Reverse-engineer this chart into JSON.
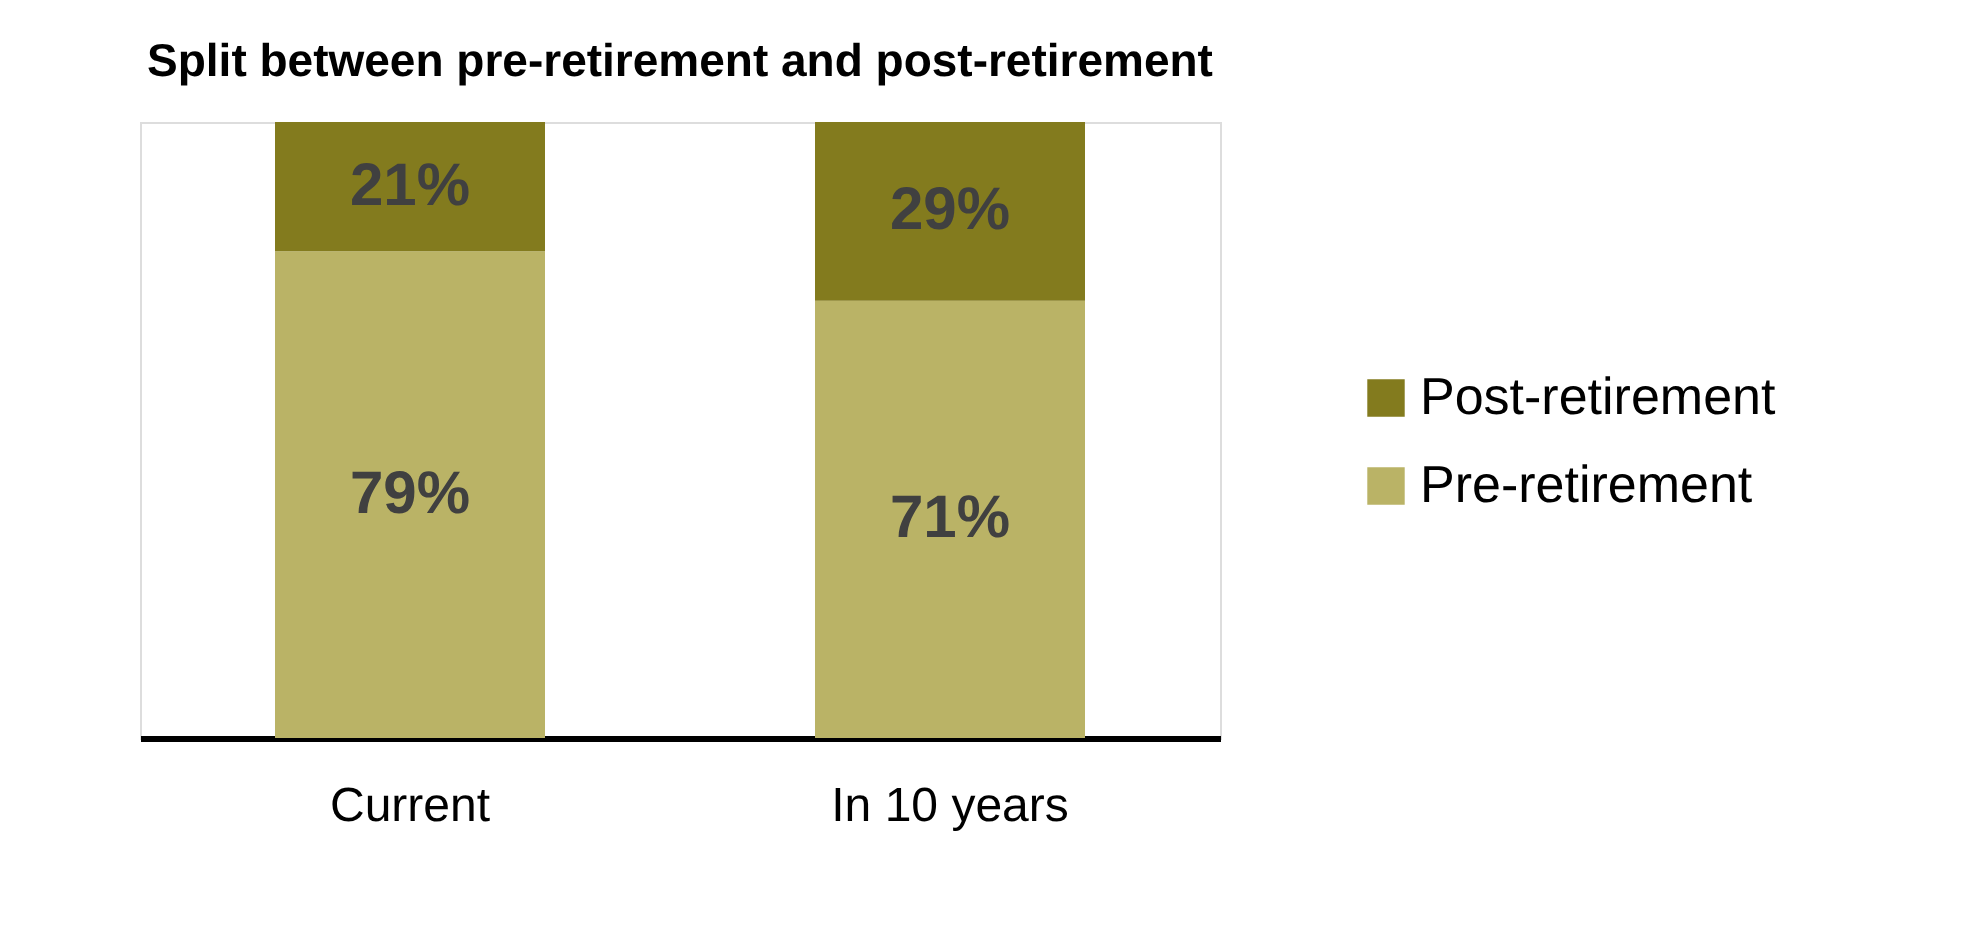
{
  "chart_data": {
    "type": "bar",
    "title": "Split between pre-retirement and post-retirement",
    "categories": [
      "Current",
      "In 10 years"
    ],
    "stacked": true,
    "series": [
      {
        "name": "Pre-retirement",
        "color": "#bab366",
        "values": [
          79,
          71
        ],
        "value_labels": [
          "79%",
          "71%"
        ]
      },
      {
        "name": "Post-retirement",
        "color": "#837b1e",
        "values": [
          21,
          29
        ],
        "value_labels": [
          "21%",
          "29%"
        ]
      }
    ],
    "legend": "right",
    "grid": false
  }
}
